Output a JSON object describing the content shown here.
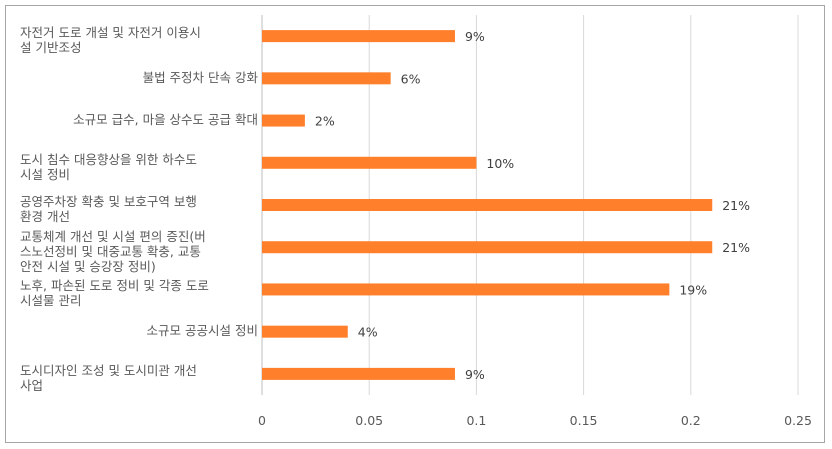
{
  "chart_data": {
    "type": "bar",
    "orientation": "horizontal",
    "categories": [
      "자전거 도로 개설 및 자전거 이용시\n설 기반조성",
      "불법 주정차 단속 강화",
      "소규모 급수, 마을 상수도 공급 확대",
      "도시 침수 대응향상을 위한 하수도\n시설 정비",
      "공영주차장 확충 및 보호구역 보행\n환경 개선",
      "교통체계 개선 및 시설 편의 증진(버\n스노선정비 및 대중교통 확충, 교통\n안전 시설 및 승강장 정비)",
      "노후, 파손된 도로 정비 및 각종 도로\n시설물 관리",
      "소규모 공공시설 정비",
      "도시디자인 조성 및 도시미관 개선\n사업"
    ],
    "values": [
      0.09,
      0.06,
      0.02,
      0.1,
      0.21,
      0.21,
      0.19,
      0.04,
      0.09
    ],
    "data_labels": [
      "9%",
      "6%",
      "2%",
      "10%",
      "21%",
      "21%",
      "19%",
      "4%",
      "9%"
    ],
    "xlim": [
      0,
      0.25
    ],
    "x_ticks": [
      "0",
      "0.05",
      "0.1",
      "0.15",
      "0.2",
      "0.25"
    ],
    "x_tick_values": [
      0,
      0.05,
      0.1,
      0.15,
      0.2,
      0.25
    ],
    "grid": "vertical",
    "bar_color": "#ff7f2a"
  }
}
